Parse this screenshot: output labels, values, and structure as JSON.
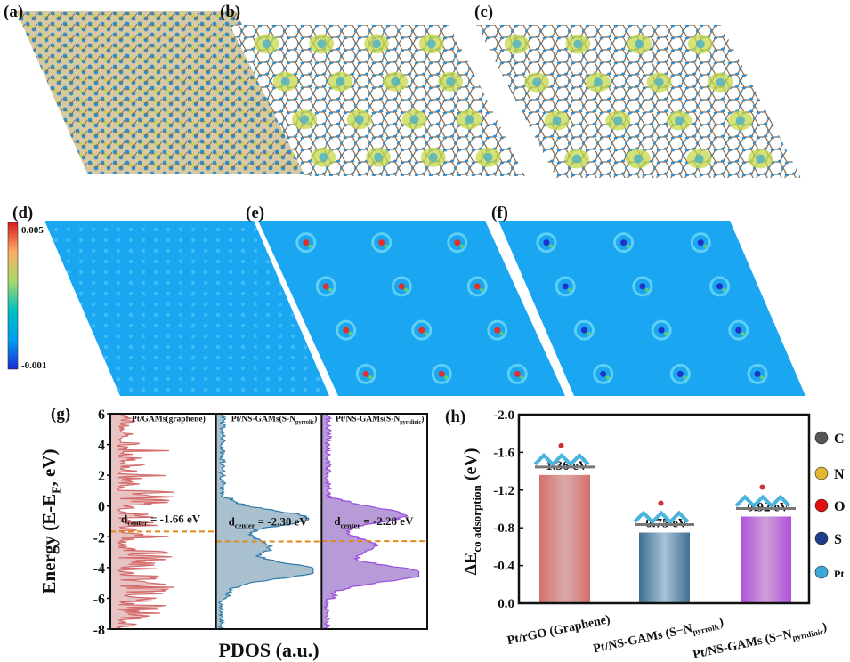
{
  "panels": {
    "a": "(a)",
    "b": "(b)",
    "c": "(c)",
    "d": "(d)",
    "e": "(e)",
    "f": "(f)",
    "g": "(g)",
    "h": "(h)"
  },
  "colorbar": {
    "max": "0.005",
    "min": "-0.001",
    "colors": [
      "#d7191c",
      "#fdae61",
      "#e6f598",
      "#66c2a5",
      "#00a8e8",
      "#1a3bd6"
    ]
  },
  "map_colors": {
    "surface": "#1aa6f0",
    "lattice": "#2f8fcf",
    "bond": "#8a6a4a",
    "iso": "#c6d84a"
  },
  "chart_data": [
    {
      "type": "area",
      "title": "",
      "xlabel": "PDOS (a.u.)",
      "ylabel": "Energy (E-E_F, eV)",
      "ylabel_main": "Energy (E-E",
      "ylabel_sub": "F",
      "ylabel_end": ", eV)",
      "ylim": [
        -8,
        6
      ],
      "yticks": [
        "6",
        "4",
        "2",
        "0",
        "-2",
        "-4",
        "-6",
        "-8"
      ],
      "ytick_values": [
        6,
        4,
        2,
        0,
        -2,
        -4,
        -6,
        -8
      ],
      "series": [
        {
          "name": "Pt/GAMs(graphene)",
          "label_main": "Pt/GAMs(graphene)",
          "label_sub": "",
          "label_end": "",
          "color": "#d46a6a",
          "fill": "#e7c3c3",
          "d_center": -1.66,
          "annotation_main": "d",
          "annotation_sub": "center",
          "annotation_value": "= -1.66 eV",
          "style": "spiky"
        },
        {
          "name": "Pt/NS-GAMs(S-N_pyrrolic)",
          "label_main": "Pt/NS-GAMs(S-N",
          "label_sub": "pyrrolic",
          "label_end": ")",
          "color": "#2f7aa8",
          "fill": "#a9c1cf",
          "d_center": -2.3,
          "annotation_main": "d",
          "annotation_sub": "center",
          "annotation_value": "= -2.30 eV",
          "peaks": [
            [
              -0.8,
              0.85
            ],
            [
              -4.2,
              0.95
            ],
            [
              -2.6,
              0.45
            ]
          ]
        },
        {
          "name": "Pt/NS-GAMs(S-N_pyridinic)",
          "label_main": "Pt/NS-GAMs(S-N",
          "label_sub": "pyridinic",
          "label_end": ")",
          "color": "#9a4fe0",
          "fill": "#b79ad8",
          "d_center": -2.28,
          "annotation_main": "d",
          "annotation_sub": "center",
          "annotation_value": "= -2.28 eV",
          "peaks": [
            [
              -0.6,
              0.75
            ],
            [
              -4.4,
              0.95
            ],
            [
              -2.6,
              0.45
            ]
          ]
        }
      ],
      "d_center_line_color": "#e08a1e"
    },
    {
      "type": "bar",
      "title": "",
      "ylabel": "ΔE_CO adsorption (eV)",
      "ylabel_main": "ΔE",
      "ylabel_sub": "co adsorption",
      "ylabel_end": " (eV)",
      "ylim": [
        0,
        -2.0
      ],
      "yticks": [
        "-2.0",
        "-1.6",
        "-1.2",
        "-0.8",
        "-0.4",
        "0.0"
      ],
      "ytick_values": [
        -2.0,
        -1.6,
        -1.2,
        -0.8,
        -0.4,
        0.0
      ],
      "categories": [
        {
          "main": "Pt/rGO (Graphene)",
          "sub": "",
          "end": ""
        },
        {
          "main": "Pt/NS-GAMs (S−N",
          "sub": "pyrrolic",
          "end": ")"
        },
        {
          "main": "Pt/NS-GAMs (S−N",
          "sub": "pyridinic",
          "end": ")"
        }
      ],
      "values": [
        -1.36,
        -0.75,
        -0.92
      ],
      "data_labels": [
        "-1.36 eV",
        "-0.75 eV",
        "-0.92 eV"
      ],
      "colors": [
        [
          "#d4706e",
          "#dba9a9"
        ],
        [
          "#3f6f93",
          "#a8c4d6"
        ],
        [
          "#b04fdc",
          "#cda0d8"
        ]
      ],
      "legend": {
        "placement": "right",
        "items": [
          {
            "label": "C",
            "color": "#555555"
          },
          {
            "label": "N",
            "color": "#e0b830"
          },
          {
            "label": "O",
            "color": "#e01010"
          },
          {
            "label": "S",
            "color": "#1c3c8c"
          },
          {
            "label": "Pt",
            "color": "#3aa8d8"
          }
        ]
      }
    }
  ]
}
